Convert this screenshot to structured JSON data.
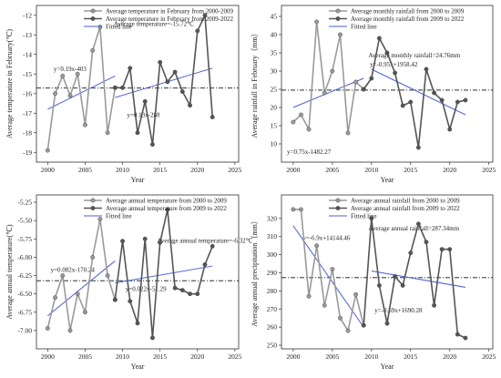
{
  "chart_data": [
    {
      "type": "line",
      "y_label": "Average temperature in February(℃)",
      "x_label": "Year",
      "xlim": [
        1998.5,
        2025.5
      ],
      "xticks": [
        2000,
        2005,
        2010,
        2015,
        2020,
        2025
      ],
      "ylim": [
        -19.5,
        -11.5
      ],
      "yticks": [
        -19,
        -18,
        -17,
        -16,
        -15,
        -14,
        -13,
        -12
      ],
      "series": [
        {
          "name": "Average temperature in February from 2000-2009",
          "color": "#9a9a9a",
          "x": [
            2000,
            2001,
            2002,
            2003,
            2004,
            2005,
            2006,
            2007,
            2008,
            2009
          ],
          "values": [
            -18.9,
            -16.0,
            -15.1,
            -16.1,
            -15.0,
            -17.6,
            -13.8,
            -12.6,
            -18.0,
            -15.7
          ]
        },
        {
          "name": "Average temperature in February from 2009-2022",
          "color": "#555555",
          "x": [
            2009,
            2010,
            2011,
            2012,
            2013,
            2014,
            2015,
            2016,
            2017,
            2018,
            2019,
            2020,
            2021,
            2022
          ],
          "values": [
            -15.7,
            -15.7,
            -14.7,
            -18.0,
            -16.4,
            -18.6,
            -14.4,
            -15.4,
            -14.9,
            -15.9,
            -16.6,
            -12.8,
            -12.0,
            -17.2
          ]
        }
      ],
      "fit": {
        "name": "Fitted line",
        "color": "#4a5fd6",
        "lines": [
          {
            "x": [
              2000,
              2009
            ],
            "values": [
              -16.8,
              -15.1
            ],
            "label": "y=0.19x-403"
          },
          {
            "x": [
              2009,
              2022
            ],
            "values": [
              -16.2,
              -14.7
            ],
            "label": "y=0.13x-288"
          }
        ]
      },
      "average": {
        "value": -15.72,
        "label": "Average temperature=-15.72℃"
      }
    },
    {
      "type": "line",
      "y_label": "Average rainfall in February（mm）",
      "x_label": "Year",
      "xlim": [
        1998.5,
        2025.5
      ],
      "xticks": [
        2000,
        2005,
        2010,
        2015,
        2020,
        2025
      ],
      "ylim": [
        5,
        48
      ],
      "yticks": [
        10,
        15,
        20,
        25,
        30,
        35,
        40,
        45
      ],
      "series": [
        {
          "name": "Average monthly rainfall from 2000 to 2009",
          "color": "#9a9a9a",
          "x": [
            2000,
            2001,
            2002,
            2003,
            2004,
            2005,
            2006,
            2007,
            2008,
            2009
          ],
          "values": [
            16,
            18,
            14,
            43.5,
            24,
            30,
            40,
            13,
            27,
            25
          ]
        },
        {
          "name": "Average monthly rainfall from 2009 to 2022",
          "color": "#555555",
          "x": [
            2009,
            2010,
            2011,
            2012,
            2013,
            2014,
            2015,
            2016,
            2017,
            2018,
            2019,
            2020,
            2021,
            2022
          ],
          "values": [
            25,
            28,
            39,
            35,
            29.5,
            20.5,
            21.5,
            9,
            30.5,
            24,
            22,
            14,
            21.5,
            22
          ]
        }
      ],
      "fit": {
        "name": "Fitted line",
        "color": "#4a5fd6",
        "lines": [
          {
            "x": [
              2000,
              2009
            ],
            "values": [
              20,
              28
            ],
            "label": "y=0.75x-1482.27"
          },
          {
            "x": [
              2010,
              2022
            ],
            "values": [
              30.5,
              18
            ],
            "label": "y=-0.95x+1958.42"
          }
        ]
      },
      "average": {
        "value": 24.76,
        "label": "Average monthly rainfall=24.76mm"
      }
    },
    {
      "type": "line",
      "y_label": "Average annual temperature(℃)",
      "x_label": "Year",
      "xlim": [
        1998.5,
        2025.5
      ],
      "xticks": [
        2000,
        2005,
        2010,
        2015,
        2020,
        2025
      ],
      "ylim": [
        -7.25,
        -5.15
      ],
      "yticks": [
        {
          "value": -7,
          "label": "-7.00"
        },
        -6.75,
        {
          "value": -6.5,
          "label": "-6.50"
        },
        -6.25,
        {
          "value": -6,
          "label": "-6.00"
        },
        -5.75,
        {
          "value": -5.5,
          "label": "-5.50"
        },
        -5.25
      ],
      "series": [
        {
          "name": "Average annual temperature from 2000 to 2009",
          "color": "#9a9a9a",
          "x": [
            2000,
            2001,
            2002,
            2003,
            2004,
            2005,
            2006,
            2007,
            2008,
            2009
          ],
          "values": [
            -6.97,
            -6.55,
            -6.25,
            -7.0,
            -6.5,
            -6.75,
            -6.0,
            -5.48,
            -6.25,
            -6.58
          ]
        },
        {
          "name": "Average annual temperature from 2009 to 2022",
          "color": "#555555",
          "x": [
            2009,
            2010,
            2011,
            2012,
            2013,
            2014,
            2015,
            2016,
            2017,
            2018,
            2019,
            2020,
            2021,
            2022
          ],
          "values": [
            -6.58,
            -5.78,
            -6.6,
            -6.9,
            -5.75,
            -7.1,
            -5.8,
            -5.35,
            -6.42,
            -6.45,
            -6.5,
            -6.5,
            -6.1,
            -5.85
          ]
        }
      ],
      "fit": {
        "name": "Fitted line",
        "color": "#4a5fd6",
        "lines": [
          {
            "x": [
              2000,
              2009
            ],
            "values": [
              -6.8,
              -6.05
            ],
            "label": "y=0.082x-170.24"
          },
          {
            "x": [
              2009,
              2022
            ],
            "values": [
              -6.35,
              -6.12
            ],
            "label": "y=0.022x-51.29"
          }
        ]
      },
      "average": {
        "value": -6.32,
        "label": "Average annual temperature=-6.32℃"
      }
    },
    {
      "type": "line",
      "y_label": "Average annual precipitation（mm）",
      "x_label": "Year",
      "xlim": [
        1998.5,
        2025.5
      ],
      "xticks": [
        2000,
        2005,
        2010,
        2015,
        2020,
        2025
      ],
      "ylim": [
        248,
        333
      ],
      "yticks": [
        250,
        260,
        270,
        280,
        290,
        300,
        310,
        320
      ],
      "series": [
        {
          "name": "Average annual rainfall from 2000 to 2009",
          "color": "#9a9a9a",
          "x": [
            2000,
            2001,
            2002,
            2003,
            2004,
            2005,
            2006,
            2007,
            2008,
            2009
          ],
          "values": [
            325,
            325,
            277,
            305,
            272,
            292,
            265,
            258,
            278,
            261
          ]
        },
        {
          "name": "Average annual rainfall from 2009 to 2022",
          "color": "#555555",
          "x": [
            2009,
            2010,
            2011,
            2012,
            2013,
            2014,
            2015,
            2016,
            2017,
            2018,
            2019,
            2020,
            2021,
            2022
          ],
          "values": [
            261,
            320,
            283,
            262,
            288,
            283,
            301,
            317,
            307,
            272,
            303,
            303,
            256,
            254
          ]
        }
      ],
      "fit": {
        "name": "Fitted line",
        "color": "#4a5fd6",
        "lines": [
          {
            "x": [
              2000,
              2009
            ],
            "values": [
              316,
              260
            ],
            "label": "y=-6.9x+14144.46"
          },
          {
            "x": [
              2010,
              2022
            ],
            "values": [
              291,
              282
            ],
            "label": "y=-0.69x+1690.28"
          }
        ]
      },
      "average": {
        "value": 287.34,
        "label": "Average annual rainfall=287.34mm"
      }
    }
  ]
}
